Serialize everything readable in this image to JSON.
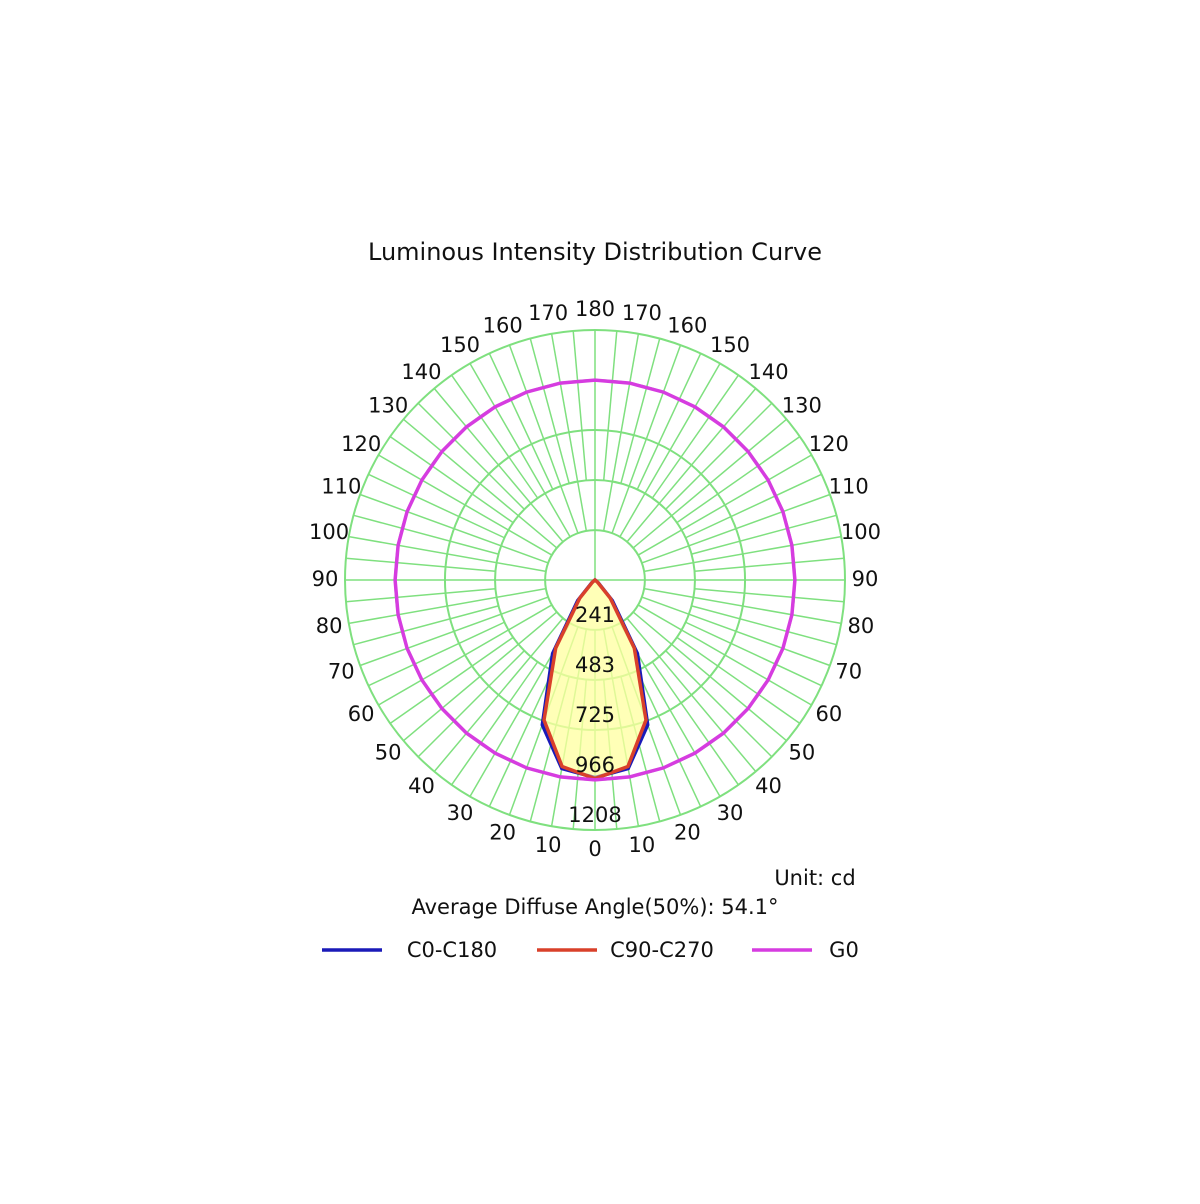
{
  "chart_data": {
    "type": "polar",
    "title": "Luminous Intensity Distribution Curve",
    "unit_note": "Unit: cd",
    "annotation": "Average Diffuse Angle(50%): 54.1°",
    "x": [
      -180,
      -170,
      -160,
      -150,
      -140,
      -130,
      -120,
      -110,
      -100,
      -90,
      -80,
      -70,
      -60,
      -50,
      -40,
      -30,
      -20,
      -10,
      0,
      10,
      20,
      30,
      40,
      50,
      60,
      70,
      80,
      90,
      100,
      110,
      120,
      130,
      140,
      150,
      160,
      170,
      180
    ],
    "series": [
      {
        "name": "C0-C180",
        "color": "#1a1ab8",
        "values": [
          0,
          0,
          0,
          0,
          0,
          0,
          0,
          0,
          0,
          0,
          0,
          0,
          0,
          20,
          130,
          410,
          745,
          925,
          955,
          925,
          745,
          410,
          130,
          20,
          0,
          0,
          0,
          0,
          0,
          0,
          0,
          0,
          0,
          0,
          0,
          0,
          0
        ]
      },
      {
        "name": "C90-C270",
        "color": "#d9402a",
        "values": [
          0,
          0,
          0,
          0,
          0,
          0,
          0,
          0,
          0,
          0,
          0,
          0,
          0,
          15,
          115,
          380,
          720,
          915,
          960,
          915,
          720,
          380,
          115,
          15,
          0,
          0,
          0,
          0,
          0,
          0,
          0,
          0,
          0,
          0,
          0,
          0,
          0
        ]
      },
      {
        "name": "G0",
        "color": "#d63ce0",
        "values": [
          966,
          966,
          966,
          966,
          966,
          966,
          966,
          966,
          966,
          966,
          966,
          966,
          966,
          966,
          966,
          966,
          966,
          966,
          966,
          966,
          966,
          966,
          966,
          966,
          966,
          966,
          966,
          966,
          966,
          966,
          966,
          966,
          966,
          966,
          966,
          966,
          966
        ]
      }
    ],
    "rlim": [
      0,
      1208
    ],
    "rticks": [
      241,
      483,
      725,
      966,
      1208
    ],
    "angle_ticks": [
      0,
      10,
      20,
      30,
      40,
      50,
      60,
      70,
      80,
      90,
      100,
      110,
      120,
      130,
      140,
      150,
      160,
      170,
      180
    ],
    "grid": true,
    "fill_color": "#ffffa0"
  }
}
